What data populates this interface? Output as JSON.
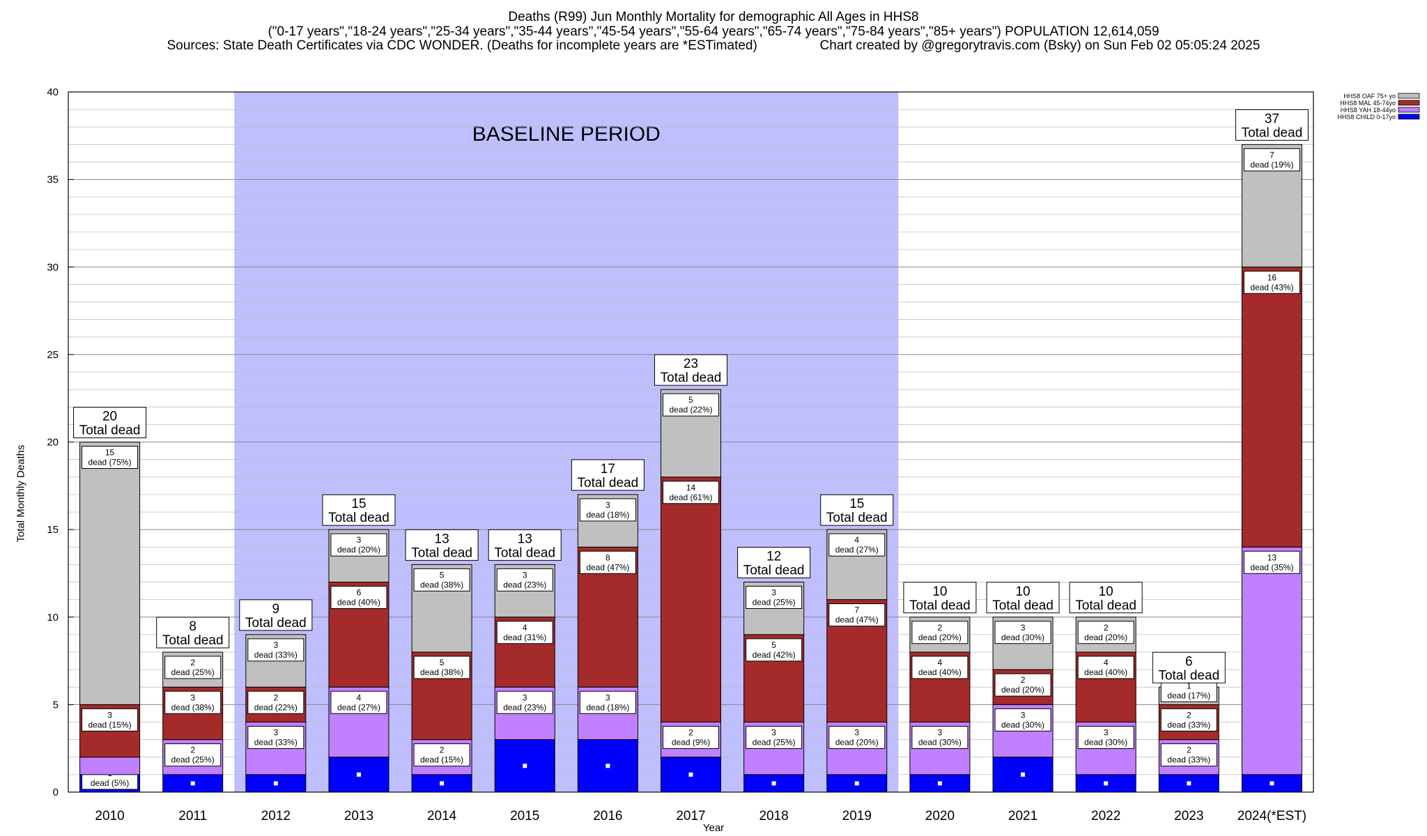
{
  "title": {
    "line1": "Deaths (R99) Jun Monthly Mortality for demographic All Ages in HHS8",
    "line2": "(\"0-17 years\",\"18-24 years\",\"25-34 years\",\"35-44 years\",\"45-54 years\",\"55-64 years\",\"65-74 years\",\"75-84 years\",\"85+ years\") POPULATION 12,614,059",
    "line3": "Sources: State Death Certificates via CDC WONDER. (Deaths for incomplete years are *ESTimated)                 Chart created by @gregorytravis.com (Bsky) on Sun Feb 02 05:05:24 2025"
  },
  "chart_data": {
    "type": "bar",
    "stacked": true,
    "xlabel": "Year",
    "ylabel": "Total Monthly Deaths",
    "ylim": [
      0,
      40
    ],
    "yticks": [
      0,
      5,
      10,
      15,
      20,
      25,
      30,
      35,
      40
    ],
    "grid": true,
    "legend_position": "top-right",
    "baseline_label": "BASELINE PERIOD",
    "baseline_range": [
      "2012",
      "2019"
    ],
    "total_suffix": "Total dead",
    "categories": [
      "2010",
      "2011",
      "2012",
      "2013",
      "2014",
      "2015",
      "2016",
      "2017",
      "2018",
      "2019",
      "2020",
      "2021",
      "2022",
      "2023",
      "2024(*EST)"
    ],
    "totals": [
      20,
      8,
      9,
      15,
      13,
      13,
      17,
      23,
      12,
      15,
      10,
      10,
      10,
      6,
      37
    ],
    "series": [
      {
        "name": "HHS8 CHILD 0-17yo",
        "color": "#0000ff",
        "values": [
          1,
          1,
          1,
          2,
          1,
          3,
          3,
          2,
          1,
          1,
          1,
          2,
          1,
          1,
          1
        ],
        "labels": [
          "dead (5%)",
          "",
          "",
          "",
          "",
          "",
          "",
          "",
          "",
          "",
          "",
          "",
          "",
          "",
          ""
        ]
      },
      {
        "name": "HHS8 YAH 18-44yo",
        "color": "#c080ff",
        "values": [
          1,
          2,
          3,
          4,
          2,
          3,
          3,
          2,
          3,
          3,
          3,
          3,
          3,
          2,
          13
        ],
        "labels": [
          "",
          "dead (25%)",
          "dead (33%)",
          "dead (27%)",
          "dead (15%)",
          "dead (23%)",
          "dead (18%)",
          "dead (9%)",
          "dead (25%)",
          "dead (20%)",
          "dead (30%)",
          "dead (30%)",
          "dead (30%)",
          "dead (33%)",
          "dead (35%)"
        ]
      },
      {
        "name": "HHS8 MAL 45-74yo",
        "color": "#a52a2a",
        "values": [
          3,
          3,
          2,
          6,
          5,
          4,
          8,
          14,
          5,
          7,
          4,
          2,
          4,
          2,
          16
        ],
        "labels": [
          "dead (15%)",
          "dead (38%)",
          "dead (22%)",
          "dead (40%)",
          "dead (38%)",
          "dead (31%)",
          "dead (47%)",
          "dead (61%)",
          "dead (42%)",
          "dead (47%)",
          "dead (40%)",
          "dead (20%)",
          "dead (40%)",
          "dead (33%)",
          "dead (43%)"
        ]
      },
      {
        "name": "HHS8 OAF 75+ yo",
        "color": "#c0c0c0",
        "values": [
          15,
          2,
          3,
          3,
          5,
          3,
          3,
          5,
          3,
          4,
          2,
          3,
          2,
          1,
          7
        ],
        "labels": [
          "dead (75%)",
          "dead (25%)",
          "dead (33%)",
          "dead (20%)",
          "dead (38%)",
          "dead (23%)",
          "dead (18%)",
          "dead (22%)",
          "dead (25%)",
          "dead (27%)",
          "dead (20%)",
          "dead (30%)",
          "dead (20%)",
          "dead (17%)",
          "dead (19%)"
        ]
      }
    ],
    "legend_order": [
      "HHS8 OAF 75+ yo",
      "HHS8 MAL 45-74yo",
      "HHS8 YAH 18-44yo",
      "HHS8 CHILD 0-17yo"
    ]
  }
}
